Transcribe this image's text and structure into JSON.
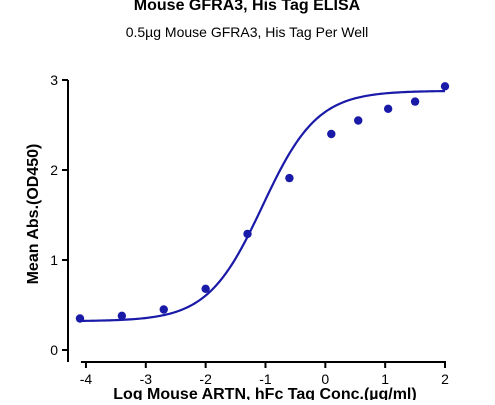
{
  "chart_data": {
    "type": "scatter",
    "title": "Mouse GFRA3, His Tag ELISA",
    "subtitle": "0.5µg Mouse GFRA3, His Tag Per Well",
    "xlabel": "Log Mouse ARTN, hFc Tag Conc.(µg/ml)",
    "ylabel": "Mean Abs.(OD450)",
    "xlim": [
      -4.3,
      2.05
    ],
    "ylim": [
      0,
      3
    ],
    "xticks": [
      -4,
      -3,
      -2,
      -1,
      0,
      1,
      2
    ],
    "yticks": [
      0,
      1,
      2,
      3
    ],
    "xtick_labels": [
      "-4",
      "-3",
      "-2",
      "-1",
      "0",
      "1",
      "2"
    ],
    "ytick_labels": [
      "0",
      "1",
      "2",
      "3"
    ],
    "grid": false,
    "series": [
      {
        "points": [
          {
            "x": -4.1,
            "y": 0.35
          },
          {
            "x": -3.4,
            "y": 0.38
          },
          {
            "x": -2.7,
            "y": 0.45
          },
          {
            "x": -2.0,
            "y": 0.68
          },
          {
            "x": -1.3,
            "y": 1.29
          },
          {
            "x": -0.6,
            "y": 1.91
          },
          {
            "x": 0.1,
            "y": 2.4
          },
          {
            "x": 0.55,
            "y": 2.55
          },
          {
            "x": 1.05,
            "y": 2.68
          },
          {
            "x": 1.5,
            "y": 2.76
          },
          {
            "x": 2.0,
            "y": 2.93
          }
        ],
        "color": "#1a1aa8"
      }
    ],
    "fit_curve": {
      "model": "4PL",
      "bottom": 0.32,
      "top": 2.88,
      "log_ec50": -1.05,
      "hill_slope": 0.95,
      "x_range": [
        -4.1,
        2.0
      ],
      "color": "#1a1aa8"
    }
  }
}
